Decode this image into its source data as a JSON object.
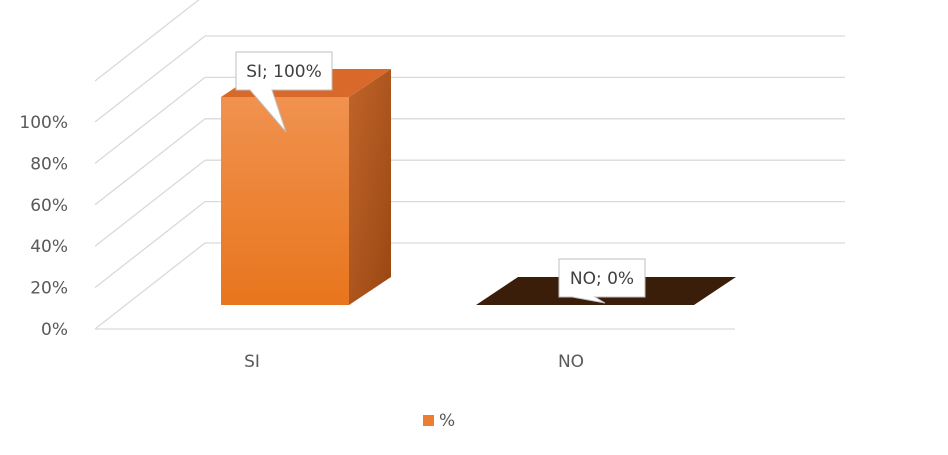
{
  "chart_data": {
    "type": "bar",
    "three_d": true,
    "categories": [
      "SI",
      "NO"
    ],
    "series": [
      {
        "name": "%",
        "values": [
          100,
          0
        ],
        "color": "#ED7D31"
      }
    ],
    "data_labels": [
      "SI; 100%",
      "NO; 0%"
    ],
    "y_ticks": [
      "0%",
      "20%",
      "40%",
      "60%",
      "80%",
      "100%"
    ],
    "ylim": [
      0,
      100
    ],
    "grid": true,
    "legend": {
      "position": "bottom",
      "entries": [
        "%"
      ]
    },
    "colors": {
      "bar_front_top": "#F0924F",
      "bar_front_bottom": "#E8751D",
      "bar_side": "#B0541A",
      "bar_top": "#D9692A",
      "zero_bar_top": "#3A1E0A",
      "grid": "#D9D9D9",
      "text": "#595959"
    }
  }
}
